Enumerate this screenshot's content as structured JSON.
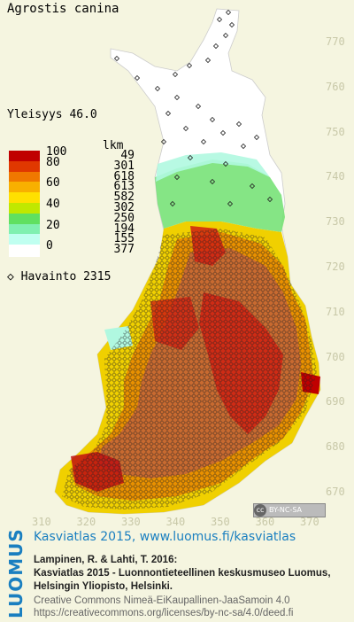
{
  "title": "Agrostis canina",
  "frequency": "Yleisyys  46.0",
  "legend": {
    "count_header": "lkm",
    "classes": [
      {
        "value": "100",
        "count": "49",
        "color": "#c00000"
      },
      {
        "value": "80",
        "count": "301",
        "color": "#e03800"
      },
      {
        "value": "",
        "count": "618",
        "color": "#f07800"
      },
      {
        "value": "60",
        "count": "613",
        "color": "#f8b000"
      },
      {
        "value": "",
        "count": "582",
        "color": "#ffe000"
      },
      {
        "value": "40",
        "count": "302",
        "color": "#c0e800"
      },
      {
        "value": "",
        "count": "250",
        "color": "#60e060"
      },
      {
        "value": "20",
        "count": "194",
        "color": "#80f0b0"
      },
      {
        "value": "",
        "count": "155",
        "color": "#c0fff0"
      },
      {
        "value": "0",
        "count": "377",
        "color": "#ffffff"
      }
    ]
  },
  "observations": "Havainto 2315",
  "y_ticks": [
    "770",
    "760",
    "750",
    "740",
    "730",
    "720",
    "710",
    "700",
    "690",
    "680",
    "670"
  ],
  "x_ticks": [
    "310",
    "320",
    "330",
    "340",
    "350",
    "360",
    "370"
  ],
  "license_badge": "BY-NC-SA",
  "footer": {
    "brand": "LUOMUS",
    "atlas": "Kasviatlas 2015, www.luomus.fi/kasviatlas",
    "citation": [
      "Lampinen, R. & Lahti, T. 2016:",
      "Kasviatlas 2015 - Luonnontieteellinen keskusmuseo Luomus,",
      "Helsingin Yliopisto, Helsinki."
    ],
    "license": [
      "Creative Commons Nimeä-EiKaupallinen-JaaSamoin 4.0",
      "https://creativecommons.org/licenses/by-nc-sa/4.0/deed.fi"
    ]
  }
}
